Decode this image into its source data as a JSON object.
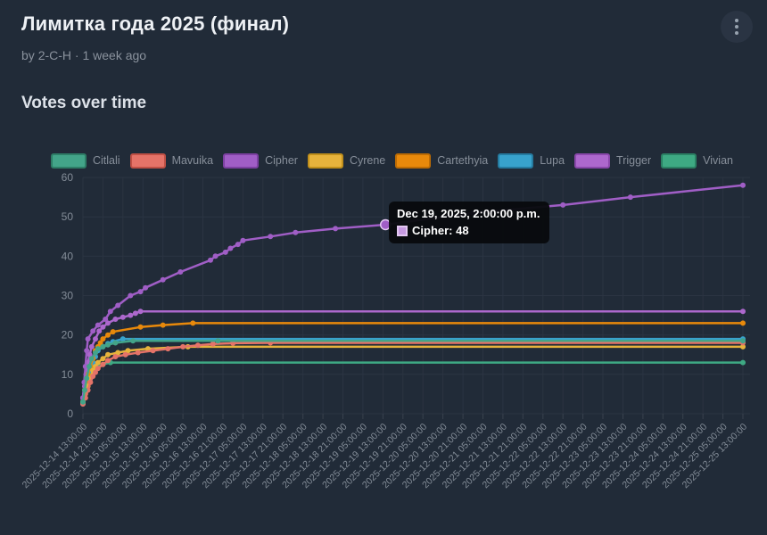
{
  "page": {
    "background": "#212b38"
  },
  "header": {
    "title": "Лимитка года 2025 (финал)",
    "byline": {
      "prefix": "by ",
      "author": "2-C-H",
      "separator": " · ",
      "time": "1 week ago"
    },
    "menu_icon": "kebab-vertical-icon"
  },
  "section": {
    "heading": "Votes over time"
  },
  "chart_data": {
    "type": "line",
    "title": "Votes over time",
    "legend_position": "top",
    "grid": {
      "on": true,
      "color": "#2b3442",
      "tick_color": "#39424e"
    },
    "y_axis": {
      "ticks": [
        0,
        10,
        20,
        30,
        40,
        50,
        60
      ],
      "range": [
        0,
        60
      ]
    },
    "x_axis": {
      "hours_per_tick": 8,
      "range_hours": [
        0,
        264
      ],
      "labels": [
        "2025-12-14 13:00:00",
        "2025-12-14 21:00:00",
        "2025-12-15 05:00:00",
        "2025-12-15 13:00:00",
        "2025-12-15 21:00:00",
        "2025-12-16 05:00:00",
        "2025-12-16 13:00:00",
        "2025-12-16 21:00:00",
        "2025-12-17 05:00:00",
        "2025-12-17 13:00:00",
        "2025-12-17 21:00:00",
        "2025-12-18 05:00:00",
        "2025-12-18 13:00:00",
        "2025-12-18 21:00:00",
        "2025-12-19 05:00:00",
        "2025-12-19 13:00:00",
        "2025-12-19 21:00:00",
        "2025-12-20 05:00:00",
        "2025-12-20 13:00:00",
        "2025-12-20 21:00:00",
        "2025-12-21 05:00:00",
        "2025-12-21 13:00:00",
        "2025-12-21 21:00:00",
        "2025-12-22 05:00:00",
        "2025-12-22 13:00:00",
        "2025-12-22 21:00:00",
        "2025-12-23 05:00:00",
        "2025-12-23 13:00:00",
        "2025-12-23 21:00:00",
        "2025-12-24 05:00:00",
        "2025-12-24 13:00:00",
        "2025-12-24 21:00:00",
        "2025-12-25 05:00:00",
        "2025-12-25 13:00:00"
      ]
    },
    "series": [
      {
        "name": "Citlali",
        "color": "#43a489",
        "border": "#2e7e67",
        "final_value": 18.5,
        "points": [
          [
            0,
            3
          ],
          [
            0.7,
            6
          ],
          [
            1.5,
            9
          ],
          [
            2.5,
            12
          ],
          [
            3.5,
            14
          ],
          [
            5,
            15.5
          ],
          [
            6,
            16.5
          ],
          [
            8,
            17
          ],
          [
            10,
            17.5
          ],
          [
            13,
            18
          ],
          [
            20,
            18.5
          ],
          [
            54,
            18.5
          ],
          [
            264,
            18.5
          ]
        ]
      },
      {
        "name": "Mavuika",
        "color": "#e57368",
        "border": "#c05045",
        "final_value": 18,
        "points": [
          [
            0,
            2.5
          ],
          [
            1,
            4
          ],
          [
            2,
            6
          ],
          [
            3,
            8
          ],
          [
            4,
            9.5
          ],
          [
            5,
            10.5
          ],
          [
            6,
            11.5
          ],
          [
            8,
            12.5
          ],
          [
            10,
            13.5
          ],
          [
            13,
            14.5
          ],
          [
            17,
            15
          ],
          [
            22,
            15.5
          ],
          [
            28,
            16
          ],
          [
            34,
            16.5
          ],
          [
            40,
            17
          ],
          [
            46,
            17.4
          ],
          [
            52,
            17.7
          ],
          [
            60,
            17.9
          ],
          [
            75,
            18
          ],
          [
            264,
            18
          ]
        ]
      },
      {
        "name": "Cipher",
        "color": "#a05ec6",
        "border": "#7d41a2",
        "final_value": 58,
        "points": [
          [
            0,
            4
          ],
          [
            0.5,
            8
          ],
          [
            1,
            12
          ],
          [
            1.5,
            16
          ],
          [
            2,
            19
          ],
          [
            4,
            21
          ],
          [
            6,
            22.5
          ],
          [
            9,
            24
          ],
          [
            11,
            26
          ],
          [
            14,
            27.5
          ],
          [
            19,
            30
          ],
          [
            23,
            31
          ],
          [
            25,
            32
          ],
          [
            32,
            34
          ],
          [
            39,
            36
          ],
          [
            51,
            39
          ],
          [
            53,
            40
          ],
          [
            57,
            41
          ],
          [
            59,
            42
          ],
          [
            62,
            43
          ],
          [
            64,
            44
          ],
          [
            75,
            45
          ],
          [
            85,
            46
          ],
          [
            101,
            47
          ],
          [
            121,
            48
          ],
          [
            156,
            51
          ],
          [
            192,
            53
          ],
          [
            219,
            55
          ],
          [
            264,
            58
          ]
        ]
      },
      {
        "name": "Cyrene",
        "color": "#e7b33c",
        "border": "#c08f1b",
        "final_value": 17,
        "points": [
          [
            0,
            3
          ],
          [
            1,
            5
          ],
          [
            2,
            7
          ],
          [
            3,
            9
          ],
          [
            4,
            11
          ],
          [
            5,
            12
          ],
          [
            6,
            13
          ],
          [
            8,
            14
          ],
          [
            10,
            15
          ],
          [
            14,
            15.5
          ],
          [
            18,
            16
          ],
          [
            26,
            16.5
          ],
          [
            42,
            17
          ],
          [
            264,
            17
          ]
        ]
      },
      {
        "name": "Cartethyia",
        "color": "#e8890b",
        "border": "#bd6c04",
        "final_value": 23,
        "points": [
          [
            0,
            3
          ],
          [
            0.7,
            6
          ],
          [
            1.3,
            8
          ],
          [
            2,
            10
          ],
          [
            3,
            12
          ],
          [
            4,
            14
          ],
          [
            5,
            16
          ],
          [
            6,
            17
          ],
          [
            7,
            18
          ],
          [
            8,
            19
          ],
          [
            10,
            20
          ],
          [
            12,
            20.8
          ],
          [
            23,
            22
          ],
          [
            32,
            22.5
          ],
          [
            44,
            23
          ],
          [
            264,
            23
          ]
        ]
      },
      {
        "name": "Lupa",
        "color": "#38a2cc",
        "border": "#257ba0",
        "final_value": 19,
        "points": [
          [
            0,
            2.5
          ],
          [
            0.7,
            5
          ],
          [
            1.3,
            7
          ],
          [
            2,
            9
          ],
          [
            3,
            11
          ],
          [
            4,
            13
          ],
          [
            5,
            14.5
          ],
          [
            6,
            16
          ],
          [
            8,
            17
          ],
          [
            10,
            17.8
          ],
          [
            12,
            18.3
          ],
          [
            16,
            19
          ],
          [
            264,
            19
          ]
        ]
      },
      {
        "name": "Trigger",
        "color": "#ad68cd",
        "border": "#8a48ab",
        "final_value": 26,
        "points": [
          [
            0,
            4
          ],
          [
            0.7,
            7
          ],
          [
            1.3,
            10
          ],
          [
            2,
            13
          ],
          [
            2.7,
            15
          ],
          [
            3.5,
            17
          ],
          [
            5,
            19
          ],
          [
            6.5,
            21
          ],
          [
            8,
            22
          ],
          [
            10,
            23
          ],
          [
            13,
            24
          ],
          [
            16,
            24.5
          ],
          [
            19,
            25
          ],
          [
            21,
            25.5
          ],
          [
            23,
            26
          ],
          [
            264,
            26
          ]
        ]
      },
      {
        "name": "Vivian",
        "color": "#3ea983",
        "border": "#2b8164",
        "final_value": 13,
        "points": [
          [
            0,
            3
          ],
          [
            0.7,
            5
          ],
          [
            1.5,
            7
          ],
          [
            2.5,
            9
          ],
          [
            3.5,
            10.5
          ],
          [
            5,
            11.5
          ],
          [
            6,
            12
          ],
          [
            8,
            12.5
          ],
          [
            11,
            13
          ],
          [
            264,
            13
          ]
        ]
      }
    ],
    "tooltip": {
      "title": "Dec 19, 2025, 2:00:00 p.m.",
      "series": "Cipher",
      "label": "Cipher: 48",
      "value": 48,
      "x_hours": 121,
      "swatch_fill": "#c79ae2",
      "swatch_border": "#e3c8f2"
    }
  }
}
